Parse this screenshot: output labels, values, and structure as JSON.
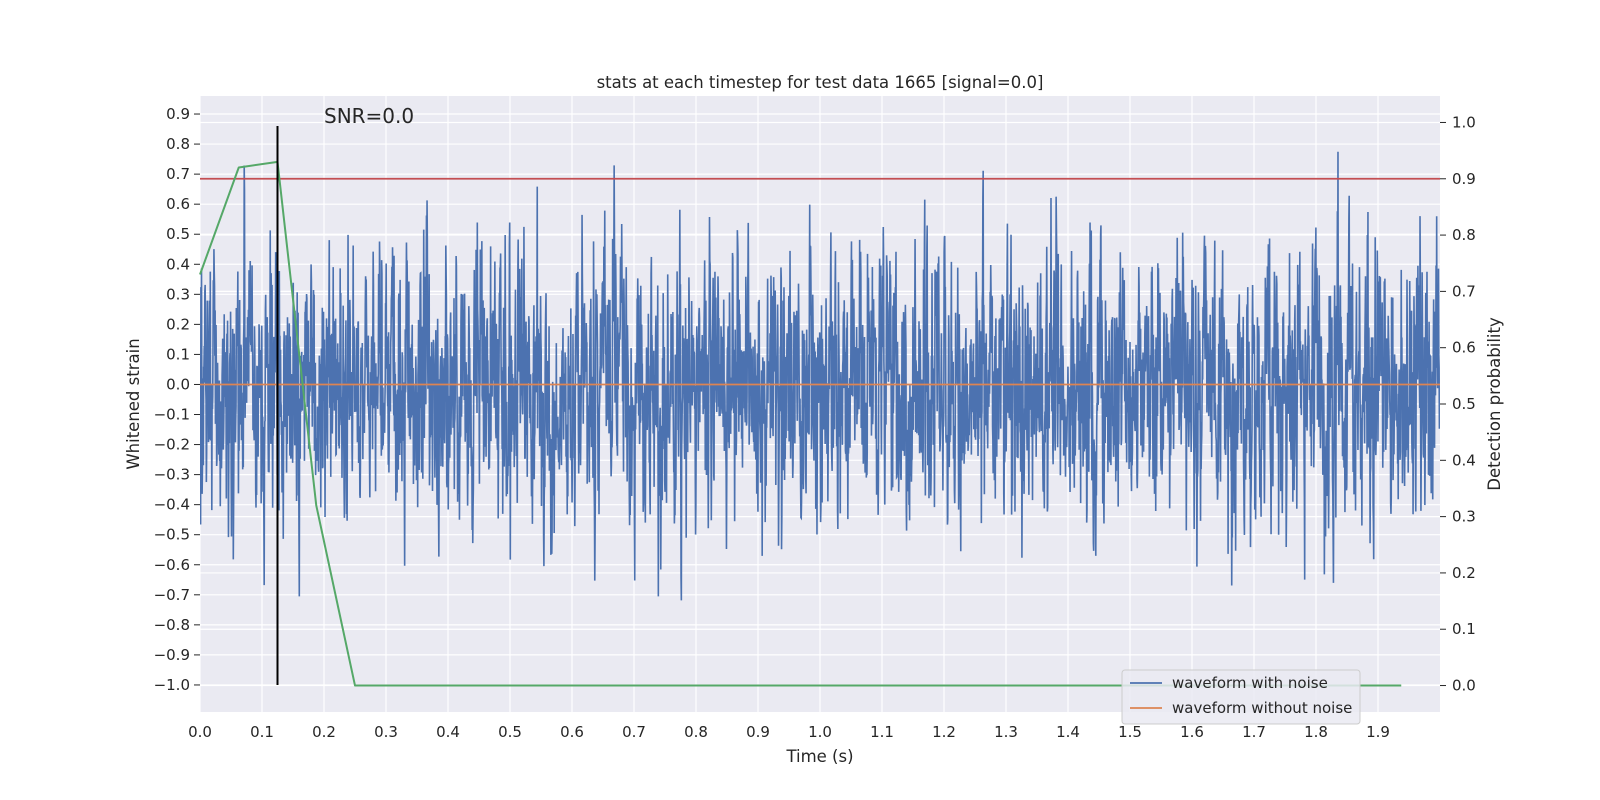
{
  "chart_data": {
    "type": "line",
    "title": "stats at each timestep for test data 1665 [signal=0.0]",
    "xlabel": "Time (s)",
    "ylabel_left": "Whitened strain",
    "ylabel_right": "Detection probability",
    "xlim": [
      0.0,
      2.0
    ],
    "ylim_left": [
      -1.09,
      0.96
    ],
    "ylim_right": [
      -0.047,
      1.047
    ],
    "x_ticks": [
      0.0,
      0.1,
      0.2,
      0.3,
      0.4,
      0.5,
      0.6,
      0.7,
      0.8,
      0.9,
      1.0,
      1.1,
      1.2,
      1.3,
      1.4,
      1.5,
      1.6,
      1.7,
      1.8,
      1.9
    ],
    "x_tick_labels": [
      "0.0",
      "0.1",
      "0.2",
      "0.3",
      "0.4",
      "0.5",
      "0.6",
      "0.7",
      "0.8",
      "0.9",
      "1.0",
      "1.1",
      "1.2",
      "1.3",
      "1.4",
      "1.5",
      "1.6",
      "1.7",
      "1.8",
      "1.9"
    ],
    "y_left_ticks": [
      -1.0,
      -0.9,
      -0.8,
      -0.7,
      -0.6,
      -0.5,
      -0.4,
      -0.3,
      -0.2,
      -0.1,
      0.0,
      0.1,
      0.2,
      0.3,
      0.4,
      0.5,
      0.6,
      0.7,
      0.8,
      0.9
    ],
    "y_left_tick_labels": [
      "−1.0",
      "−0.9",
      "−0.8",
      "−0.7",
      "−0.6",
      "−0.5",
      "−0.4",
      "−0.3",
      "−0.2",
      "−0.1",
      "0.0",
      "0.1",
      "0.2",
      "0.3",
      "0.4",
      "0.5",
      "0.6",
      "0.7",
      "0.8",
      "0.9"
    ],
    "y_right_ticks": [
      0.0,
      0.1,
      0.2,
      0.3,
      0.4,
      0.5,
      0.6,
      0.7,
      0.8,
      0.9,
      1.0
    ],
    "y_right_tick_labels": [
      "0.0",
      "0.1",
      "0.2",
      "0.3",
      "0.4",
      "0.5",
      "0.6",
      "0.7",
      "0.8",
      "0.9",
      "1.0"
    ],
    "annotation": "SNR=0.0",
    "annotation_x": 0.2,
    "annotation_y": 0.87,
    "series": [
      {
        "name": "waveform with noise",
        "axis": "left",
        "color": "#4c72b0",
        "kind": "noise",
        "sample_rate": 2048,
        "duration": 2.0,
        "sigma": 0.22,
        "clip": [
          -1.0,
          0.85
        ],
        "seed": 1665
      },
      {
        "name": "waveform without noise",
        "axis": "left",
        "color": "#dd8452",
        "x": [
          0.0,
          2.0
        ],
        "y": [
          0.0,
          0.0
        ]
      },
      {
        "name": "detection probability",
        "axis": "right",
        "color": "#55a868",
        "x": [
          0.0,
          0.0625,
          0.125,
          0.1875,
          0.25,
          0.3125,
          0.375,
          0.4375,
          0.5,
          1.0,
          1.5,
          1.9375
        ],
        "y": [
          0.73,
          0.92,
          0.93,
          0.32,
          0.0,
          0.0,
          0.0,
          0.0,
          0.0,
          0.0,
          0.0,
          0.0
        ]
      }
    ],
    "threshold": {
      "axis": "right",
      "value": 0.9,
      "color": "#c44e52"
    },
    "marker_line": {
      "x": 0.125,
      "y_range": [
        -1.0,
        0.86
      ],
      "color": "#000000"
    },
    "legend": {
      "location": "lower right",
      "entries": [
        {
          "label": "waveform with noise",
          "color": "#4c72b0"
        },
        {
          "label": "waveform without noise",
          "color": "#dd8452"
        }
      ]
    },
    "colors": {
      "background": "#eaeaf2",
      "grid": "#ffffff"
    }
  }
}
